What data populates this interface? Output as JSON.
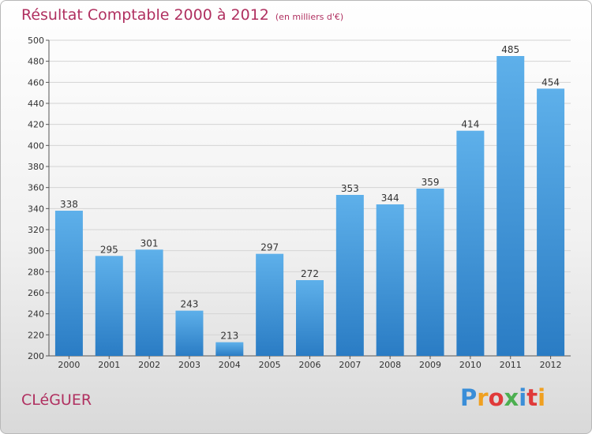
{
  "header": {
    "title": "Résultat Comptable 2000 à 2012",
    "subtitle": "(en milliers d'€)"
  },
  "commune": "CLéGUER",
  "logo": {
    "letters": [
      {
        "ch": "P",
        "color": "#3a8ed8"
      },
      {
        "ch": "r",
        "color": "#f0a020"
      },
      {
        "ch": "o",
        "color": "#e03a3a"
      },
      {
        "ch": "x",
        "color": "#4caf50"
      },
      {
        "ch": "i",
        "color": "#3a8ed8"
      },
      {
        "ch": "t",
        "color": "#e03a3a"
      },
      {
        "ch": "i",
        "color": "#f0a020"
      }
    ]
  },
  "chart_data": {
    "type": "bar",
    "title": "Résultat Comptable 2000 à 2012",
    "subtitle": "(en milliers d'€)",
    "categories": [
      "2000",
      "2001",
      "2002",
      "2003",
      "2004",
      "2005",
      "2006",
      "2007",
      "2008",
      "2009",
      "2010",
      "2011",
      "2012"
    ],
    "values": [
      338,
      295,
      301,
      243,
      213,
      297,
      272,
      353,
      344,
      359,
      414,
      485,
      454
    ],
    "xlabel": "",
    "ylabel": "",
    "ylim": [
      200,
      500
    ],
    "yticks": [
      200,
      220,
      240,
      260,
      280,
      300,
      320,
      340,
      360,
      380,
      400,
      420,
      440,
      460,
      480,
      500
    ],
    "grid": true,
    "bar_color": "#3d8fd6"
  }
}
